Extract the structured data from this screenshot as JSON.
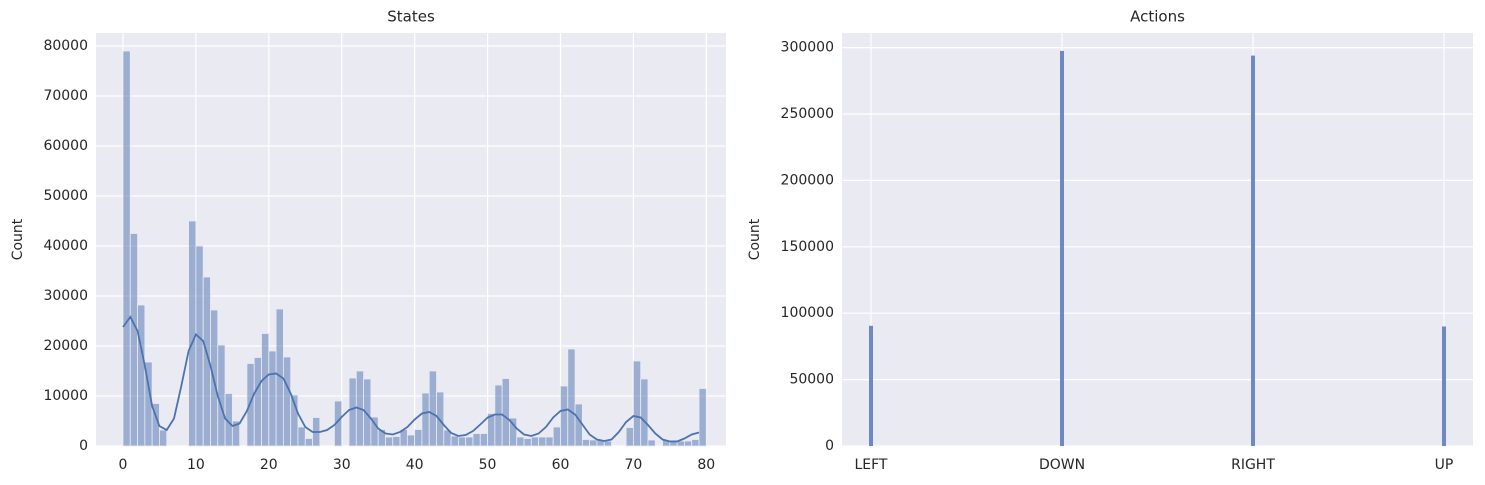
{
  "chart_data": [
    {
      "type": "histogram",
      "title": "States",
      "y_label": "Count",
      "bins": [
        0,
        1,
        2,
        3,
        4,
        5,
        6,
        7,
        8,
        9,
        10,
        11,
        12,
        13,
        14,
        15,
        16,
        17,
        18,
        19,
        20,
        21,
        22,
        23,
        24,
        25,
        26,
        27,
        28,
        29,
        30,
        31,
        32,
        33,
        34,
        35,
        36,
        37,
        38,
        39,
        40,
        41,
        42,
        43,
        44,
        45,
        46,
        47,
        48,
        49,
        50,
        51,
        52,
        53,
        54,
        55,
        56,
        57,
        58,
        59,
        60,
        61,
        62,
        63,
        64,
        65,
        66,
        67,
        68,
        69,
        70,
        71,
        72,
        73,
        74,
        75,
        76,
        77,
        78,
        79,
        80
      ],
      "counts": [
        79000,
        42500,
        28200,
        16800,
        8500,
        3200,
        0,
        0,
        0,
        45000,
        40000,
        33800,
        27200,
        20200,
        10500,
        5000,
        0,
        16500,
        17700,
        22500,
        19000,
        27400,
        17800,
        10200,
        3800,
        1500,
        5700,
        0,
        0,
        9000,
        0,
        13600,
        15000,
        13400,
        5800,
        3300,
        1800,
        1900,
        3300,
        2200,
        3300,
        10600,
        15000,
        10800,
        3200,
        2000,
        1800,
        1800,
        2500,
        2500,
        6500,
        12200,
        13500,
        5600,
        1800,
        1500,
        1800,
        1800,
        1800,
        3800,
        12000,
        19400,
        8400,
        1300,
        1200,
        1200,
        1000,
        0,
        0,
        3700,
        17000,
        13400,
        1200,
        0,
        1200,
        1200,
        1000,
        1000,
        1300,
        11500
      ],
      "color": "#4c72b0",
      "kde": {
        "x": [
          0,
          1,
          2,
          3,
          4,
          5,
          6,
          7,
          8,
          9,
          10,
          11,
          12,
          13,
          14,
          15,
          16,
          17,
          18,
          19,
          20,
          21,
          22,
          23,
          24,
          25,
          26,
          27,
          28,
          29,
          30,
          31,
          32,
          33,
          34,
          35,
          36,
          37,
          38,
          39,
          40,
          41,
          42,
          43,
          44,
          45,
          46,
          47,
          48,
          49,
          50,
          51,
          52,
          53,
          54,
          55,
          56,
          57,
          58,
          59,
          60,
          61,
          62,
          63,
          64,
          65,
          66,
          67,
          68,
          69,
          70,
          71,
          72,
          73,
          74,
          75,
          76,
          77,
          78,
          79
        ],
        "y": [
          23800,
          25800,
          23000,
          16000,
          8000,
          4000,
          3200,
          5500,
          12000,
          19000,
          22300,
          21000,
          16000,
          10000,
          5500,
          4000,
          4500,
          7000,
          10500,
          13000,
          14300,
          14500,
          13500,
          10500,
          6500,
          3800,
          2800,
          2800,
          3200,
          4200,
          5800,
          7200,
          7700,
          7200,
          5500,
          3500,
          2500,
          2300,
          2800,
          3800,
          5300,
          6500,
          6800,
          6000,
          4200,
          2600,
          2000,
          2200,
          3000,
          4300,
          5700,
          6300,
          6300,
          5200,
          3500,
          2300,
          2000,
          2500,
          3800,
          5700,
          7000,
          7300,
          6300,
          4300,
          2300,
          1300,
          1000,
          1300,
          2800,
          4800,
          6000,
          5700,
          4200,
          2500,
          1300,
          900,
          900,
          1500,
          2300,
          2700
        ]
      },
      "xlim": [
        -3.7,
        82.7
      ],
      "xticks": [
        0,
        10,
        20,
        30,
        40,
        50,
        60,
        70,
        80
      ],
      "ylim": [
        0,
        82600
      ],
      "yticks": [
        0,
        10000,
        20000,
        30000,
        40000,
        50000,
        60000,
        70000,
        80000
      ],
      "grid": true
    },
    {
      "type": "bar",
      "title": "Actions",
      "y_label": "Count",
      "categories": [
        "LEFT",
        "DOWN",
        "RIGHT",
        "UP"
      ],
      "values": [
        90500,
        297500,
        294000,
        90000
      ],
      "color": "#5975b8",
      "ylim": [
        0,
        311000
      ],
      "yticks": [
        0,
        50000,
        100000,
        150000,
        200000,
        250000,
        300000
      ],
      "grid": true
    }
  ]
}
